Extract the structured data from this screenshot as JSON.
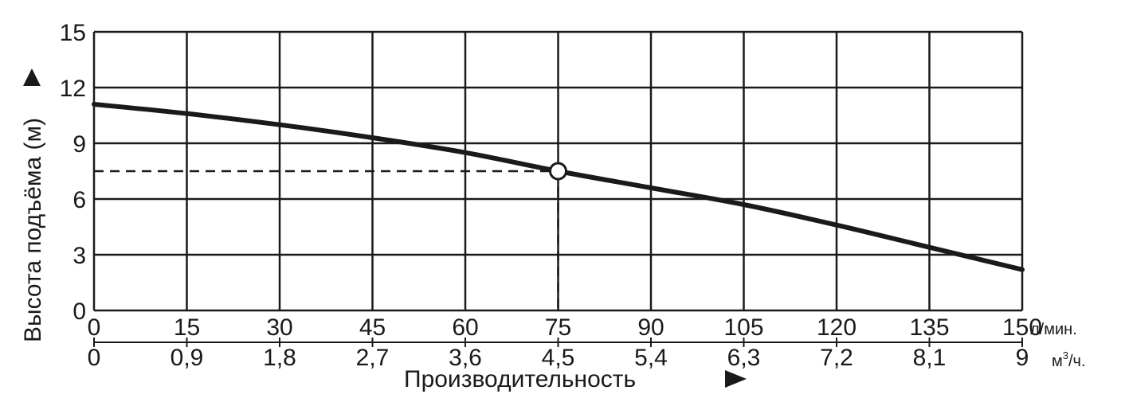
{
  "chart_data": {
    "type": "line",
    "ylabel": "Высота подъёма (м)",
    "xlabel": "Производительность",
    "ylim": [
      0,
      15
    ],
    "xlim": [
      0,
      150
    ],
    "y_ticks": [
      "0",
      "3",
      "6",
      "9",
      "12",
      "15"
    ],
    "x_ticks_primary": [
      "0",
      "15",
      "30",
      "45",
      "60",
      "75",
      "90",
      "105",
      "120",
      "135",
      "150"
    ],
    "x_ticks_secondary": [
      "0",
      "0,9",
      "1,8",
      "2,7",
      "3,6",
      "4,5",
      "5,4",
      "6,3",
      "7,2",
      "8,1",
      "9"
    ],
    "x_unit_primary": "л/мин.",
    "x_unit_secondary_base": "м",
    "x_unit_secondary_sup": "3",
    "x_unit_secondary_tail": "/ч.",
    "grid": true,
    "series": [
      {
        "x": [
          0,
          15,
          30,
          45,
          60,
          75,
          90,
          105,
          120,
          135,
          150
        ],
        "y": [
          11.1,
          10.6,
          10.0,
          9.3,
          8.5,
          7.5,
          6.6,
          5.7,
          4.6,
          3.4,
          2.2
        ]
      }
    ],
    "highlight_point": {
      "x": 75,
      "y": 7.5
    },
    "colors": {
      "line": "#1a1a1a",
      "grid": "#1a1a1a",
      "background": "#ffffff"
    }
  }
}
